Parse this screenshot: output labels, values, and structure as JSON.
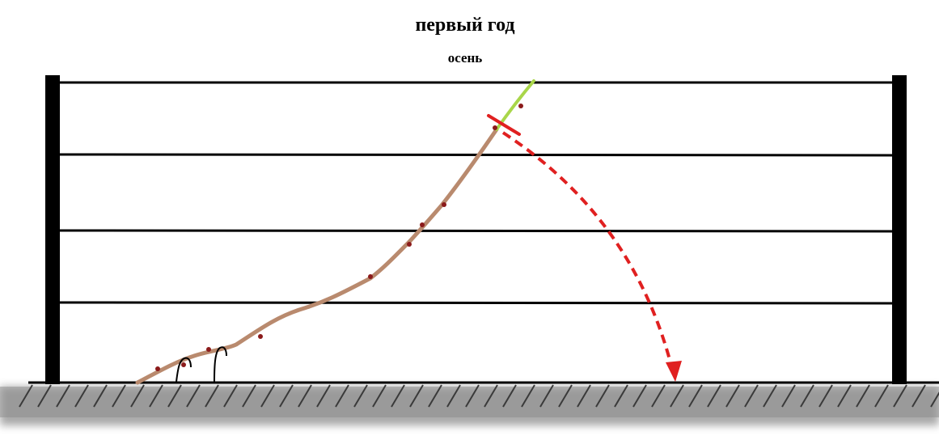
{
  "title": "первый год",
  "subtitle": "осень",
  "colors": {
    "background": "#ffffff",
    "post": "#000000",
    "wire": "#000000",
    "ground_line": "#000000",
    "ground_hatch": "#3a3a3a",
    "ground_shadow": "#9a9a9a",
    "vine_woody": "#b98a6e",
    "vine_green_tip": "#a9d64a",
    "bud": "#8b1a1a",
    "cut_mark": "#e02020",
    "bend_arrow": "#e02020",
    "tie": "#000000"
  },
  "elements": {
    "trellis_posts": 2,
    "trellis_wires": 4,
    "ties": 2,
    "cut_mark": "pruning-cut",
    "bend_arrow": "dashed-arrow-down"
  }
}
